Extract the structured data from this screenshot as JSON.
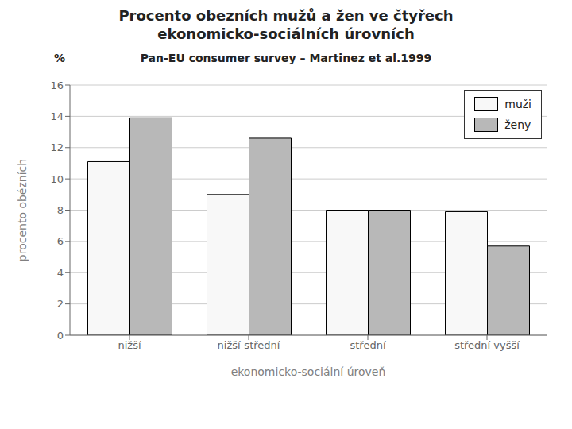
{
  "chart_data": {
    "type": "bar",
    "title": "Procento obezních mužů a žen ve čtyřech\nekonomicko-sociálních úrovních",
    "subtitle": "Pan-EU consumer survey – Martinez et al.1999",
    "annotations": [
      "%"
    ],
    "xlabel": "ekonomicko-sociální úroveň",
    "ylabel": "procento obézních",
    "categories": [
      "nižší",
      "nižší-střední",
      "střední",
      "střední vyšší"
    ],
    "series": [
      {
        "name": "muži",
        "color": "#f8f8f8",
        "values": [
          11.1,
          9.0,
          8.0,
          7.9
        ]
      },
      {
        "name": "ženy",
        "color": "#b8b8b8",
        "values": [
          13.9,
          12.6,
          8.0,
          5.7
        ]
      }
    ],
    "ylim": [
      0,
      16
    ],
    "yticks": [
      0,
      2,
      4,
      6,
      8,
      10,
      12,
      14,
      16
    ],
    "grid": true,
    "legend": "upper right"
  }
}
